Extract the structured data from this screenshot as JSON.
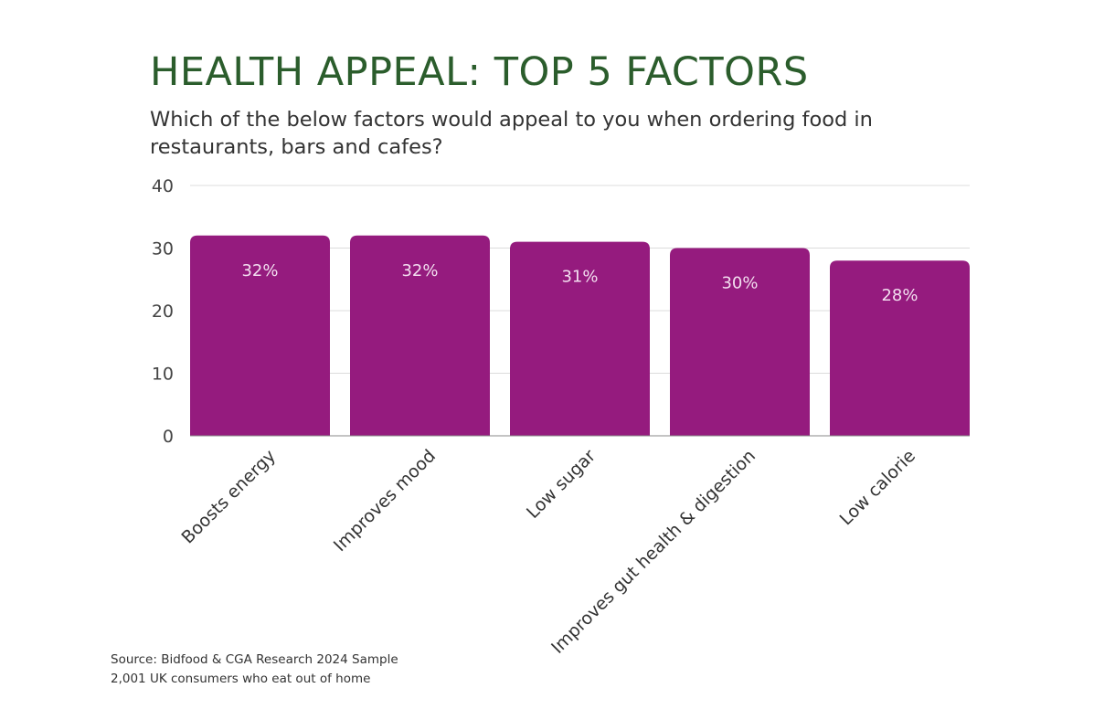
{
  "chart_data": {
    "type": "bar",
    "title": "HEALTH APPEAL: TOP 5 FACTORS",
    "subtitle": "Which of the below factors would appeal to you when ordering food in restaurants, bars and cafes?",
    "categories": [
      "Boosts energy",
      "Improves mood",
      "Low sugar",
      "Improves gut health & digestion",
      "Low calorie"
    ],
    "values": [
      32,
      32,
      31,
      30,
      28
    ],
    "data_labels": [
      "32%",
      "32%",
      "31%",
      "30%",
      "28%"
    ],
    "xlabel": "",
    "ylabel": "",
    "ylim": [
      0,
      40
    ],
    "yticks": [
      0,
      10,
      20,
      30,
      40
    ],
    "grid": true,
    "bar_color": "#951b7e",
    "title_color": "#2b5d2c"
  },
  "source": {
    "line1": "Source: Bidfood & CGA Research 2024 Sample",
    "line2": "2,001 UK consumers who eat out of home"
  }
}
